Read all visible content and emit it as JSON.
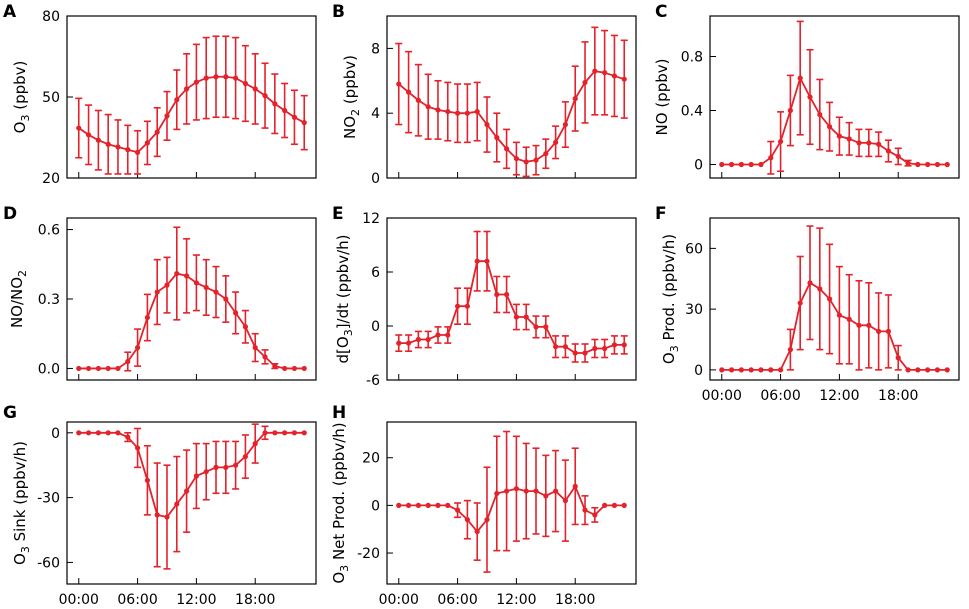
{
  "figure": {
    "series_color": "#e3222b"
  },
  "chart_data": [
    {
      "panel": "A",
      "type": "line",
      "ylabel": {
        "main": "O",
        "sub": "3",
        "rest": " (ppbv)"
      },
      "x": [
        0,
        1,
        2,
        3,
        4,
        5,
        6,
        7,
        8,
        9,
        10,
        11,
        12,
        13,
        14,
        15,
        16,
        17,
        18,
        19,
        20,
        21,
        22,
        23
      ],
      "y": [
        38.5,
        36,
        34,
        32.5,
        31.5,
        30.5,
        29.5,
        33,
        37,
        43,
        49,
        53,
        55.5,
        57,
        57.5,
        57.5,
        57,
        55,
        53,
        50.5,
        47.5,
        45,
        42.5,
        40.5
      ],
      "err": [
        11,
        11,
        11,
        11,
        10,
        9,
        8,
        8,
        9,
        9,
        11,
        13,
        14,
        15,
        15,
        15,
        15,
        14,
        13,
        12,
        11,
        10,
        10,
        10
      ],
      "ylim": [
        20,
        80
      ],
      "yticks": [
        20,
        50,
        80
      ],
      "ytick_labels": [
        "20",
        "50",
        "80"
      ],
      "xlim": [
        -1.2,
        24.2
      ],
      "xticks": [
        0,
        6,
        12,
        18
      ],
      "xtick_labels": []
    },
    {
      "panel": "B",
      "type": "line",
      "ylabel": {
        "main": "NO",
        "sub": "2",
        "rest": " (ppbv)"
      },
      "x": [
        0,
        1,
        2,
        3,
        4,
        5,
        6,
        7,
        8,
        9,
        10,
        11,
        12,
        13,
        14,
        15,
        16,
        17,
        18,
        19,
        20,
        21,
        22,
        23
      ],
      "y": [
        5.8,
        5.3,
        4.8,
        4.4,
        4.2,
        4.1,
        4.0,
        4.0,
        4.1,
        3.3,
        2.5,
        1.8,
        1.2,
        1.0,
        1.1,
        1.5,
        2.2,
        3.3,
        4.9,
        5.9,
        6.6,
        6.5,
        6.3,
        6.1
      ],
      "err": [
        2.5,
        2.5,
        2.2,
        2.0,
        1.8,
        1.8,
        1.8,
        1.8,
        1.8,
        1.7,
        1.5,
        1.2,
        1.0,
        0.9,
        0.9,
        0.9,
        1.0,
        1.4,
        2.0,
        2.5,
        2.7,
        2.6,
        2.5,
        2.4
      ],
      "ylim": [
        0,
        10
      ],
      "yticks": [
        0,
        4,
        8
      ],
      "ytick_labels": [
        "0",
        "4",
        "8"
      ],
      "xlim": [
        -1.2,
        24.2
      ],
      "xticks": [
        0,
        6,
        12,
        18
      ],
      "xtick_labels": []
    },
    {
      "panel": "C",
      "type": "line",
      "ylabel": {
        "main": "NO (ppbv)",
        "sub": "",
        "rest": ""
      },
      "x": [
        0,
        1,
        2,
        3,
        4,
        5,
        6,
        7,
        8,
        9,
        10,
        11,
        12,
        13,
        14,
        15,
        16,
        17,
        18,
        19,
        20,
        21,
        22,
        23
      ],
      "y": [
        0,
        0,
        0,
        0,
        0,
        0.05,
        0.17,
        0.4,
        0.64,
        0.5,
        0.37,
        0.28,
        0.21,
        0.19,
        0.16,
        0.16,
        0.15,
        0.1,
        0.06,
        0.01,
        0,
        0,
        0,
        0
      ],
      "err": [
        0,
        0,
        0,
        0,
        0,
        0.12,
        0.22,
        0.26,
        0.42,
        0.35,
        0.26,
        0.18,
        0.14,
        0.12,
        0.1,
        0.1,
        0.09,
        0.08,
        0.06,
        0.02,
        0,
        0,
        0,
        0
      ],
      "ylim": [
        -0.1,
        1.1
      ],
      "yticks": [
        0,
        0.4,
        0.8
      ],
      "ytick_labels": [
        "0",
        "0.4",
        "0.8"
      ],
      "xlim": [
        -1.2,
        24.2
      ],
      "xticks": [
        0,
        6,
        12,
        18
      ],
      "xtick_labels": []
    },
    {
      "panel": "D",
      "type": "line",
      "ylabel": {
        "main": "NO/NO",
        "sub": "2",
        "rest": ""
      },
      "x": [
        0,
        1,
        2,
        3,
        4,
        5,
        6,
        7,
        8,
        9,
        10,
        11,
        12,
        13,
        14,
        15,
        16,
        17,
        18,
        19,
        20,
        21,
        22,
        23
      ],
      "y": [
        0,
        0,
        0,
        0,
        0,
        0.03,
        0.09,
        0.22,
        0.33,
        0.36,
        0.41,
        0.4,
        0.37,
        0.35,
        0.33,
        0.3,
        0.24,
        0.18,
        0.09,
        0.05,
        0.01,
        0,
        0,
        0
      ],
      "err": [
        0,
        0,
        0,
        0,
        0,
        0.04,
        0.08,
        0.1,
        0.14,
        0.12,
        0.2,
        0.16,
        0.12,
        0.12,
        0.11,
        0.1,
        0.09,
        0.07,
        0.06,
        0.03,
        0.01,
        0,
        0,
        0
      ],
      "ylim": [
        -0.05,
        0.65
      ],
      "yticks": [
        0,
        0.3,
        0.6
      ],
      "ytick_labels": [
        "0.0",
        "0.3",
        "0.6"
      ],
      "xlim": [
        -1.2,
        24.2
      ],
      "xticks": [
        0,
        6,
        12,
        18
      ],
      "xtick_labels": []
    },
    {
      "panel": "E",
      "type": "line",
      "ylabel": {
        "main": "d[O",
        "sub": "3",
        "rest": "]/dt (ppbv/h)"
      },
      "x": [
        0,
        1,
        2,
        3,
        4,
        5,
        6,
        7,
        8,
        9,
        10,
        11,
        12,
        13,
        14,
        15,
        16,
        17,
        18,
        19,
        20,
        21,
        22,
        23
      ],
      "y": [
        -1.9,
        -1.9,
        -1.5,
        -1.5,
        -1.0,
        -1.0,
        2.2,
        2.2,
        7.2,
        7.2,
        3.5,
        3.5,
        1.0,
        1.0,
        -0.1,
        -0.1,
        -2.3,
        -2.3,
        -3.0,
        -3.0,
        -2.5,
        -2.5,
        -2.1,
        -2.1
      ],
      "err": [
        0.9,
        0.9,
        0.9,
        0.9,
        0.9,
        0.9,
        2.0,
        2.0,
        3.3,
        3.3,
        2.0,
        2.0,
        1.4,
        1.4,
        1.2,
        1.2,
        1.2,
        1.2,
        1.0,
        1.0,
        1.0,
        1.0,
        1.0,
        1.0
      ],
      "ylim": [
        -6,
        12
      ],
      "yticks": [
        -6,
        0,
        6,
        12
      ],
      "ytick_labels": [
        "-6",
        "0",
        "6",
        "12"
      ],
      "xlim": [
        -1.2,
        24.2
      ],
      "xticks": [
        0,
        6,
        12,
        18
      ],
      "xtick_labels": []
    },
    {
      "panel": "F",
      "type": "line",
      "ylabel": {
        "main": "O",
        "sub": "3",
        "rest": " Prod. (ppbv/h)"
      },
      "x": [
        0,
        1,
        2,
        3,
        4,
        5,
        6,
        7,
        8,
        9,
        10,
        11,
        12,
        13,
        14,
        15,
        16,
        17,
        18,
        19,
        20,
        21,
        22,
        23
      ],
      "y": [
        0,
        0,
        0,
        0,
        0,
        0,
        0,
        10,
        33,
        43,
        40,
        35,
        27,
        25,
        22,
        22,
        19,
        19,
        6,
        0,
        0,
        0,
        0,
        0
      ],
      "err": [
        0,
        0,
        0,
        0,
        0,
        0,
        0,
        10,
        23,
        28,
        30,
        27,
        24,
        22,
        22,
        21,
        19,
        18,
        6,
        0,
        0,
        0,
        0,
        0
      ],
      "ylim": [
        -5,
        75
      ],
      "yticks": [
        0,
        30,
        60
      ],
      "ytick_labels": [
        "0",
        "30",
        "60"
      ],
      "xlim": [
        -1.2,
        24.2
      ],
      "xticks": [
        0,
        6,
        12,
        18
      ],
      "xtick_labels": [
        "00:00",
        "06:00",
        "12:00",
        "18:00"
      ]
    },
    {
      "panel": "G",
      "type": "line",
      "ylabel": {
        "main": "O",
        "sub": "3",
        "rest": " Sink (ppbv/h)"
      },
      "x": [
        0,
        1,
        2,
        3,
        4,
        5,
        6,
        7,
        8,
        9,
        10,
        11,
        12,
        13,
        14,
        15,
        16,
        17,
        18,
        19,
        20,
        21,
        22,
        23
      ],
      "y": [
        0,
        0,
        0,
        0,
        0,
        -2,
        -7,
        -22,
        -38,
        -39,
        -33,
        -27,
        -20,
        -18,
        -16,
        -16,
        -15,
        -11,
        -5,
        0,
        0,
        0,
        0,
        0
      ],
      "err": [
        0,
        0,
        0,
        0,
        0,
        2,
        9,
        16,
        24,
        24,
        22,
        19,
        15,
        13,
        12,
        12,
        11,
        10,
        9,
        3,
        0,
        0,
        0,
        0
      ],
      "ylim": [
        -70,
        5
      ],
      "yticks": [
        -60,
        -30,
        0
      ],
      "ytick_labels": [
        "-60",
        "-30",
        "0"
      ],
      "xlim": [
        -1.2,
        24.2
      ],
      "xticks": [
        0,
        6,
        12,
        18
      ],
      "xtick_labels": [
        "00:00",
        "06:00",
        "12:00",
        "18:00"
      ]
    },
    {
      "panel": "H",
      "type": "line",
      "ylabel": {
        "main": "O",
        "sub": "3",
        "rest": " Net Prod. (ppbv/h)"
      },
      "x": [
        0,
        1,
        2,
        3,
        4,
        5,
        6,
        7,
        8,
        9,
        10,
        11,
        12,
        13,
        14,
        15,
        16,
        17,
        18,
        19,
        20,
        21,
        22,
        23
      ],
      "y": [
        0,
        0,
        0,
        0,
        0,
        0,
        -2,
        -6,
        -11,
        -6,
        5,
        6,
        7,
        6,
        6,
        4,
        6,
        2,
        8,
        -2,
        -4,
        0,
        0,
        0
      ],
      "err": [
        0,
        0,
        0,
        0,
        0,
        0,
        3,
        8,
        12,
        22,
        24,
        25,
        22,
        20,
        18,
        17,
        17,
        17,
        16,
        6,
        3,
        0,
        0,
        0
      ],
      "ylim": [
        -33,
        35
      ],
      "yticks": [
        -20,
        0,
        20
      ],
      "ytick_labels": [
        "-20",
        "0",
        "20"
      ],
      "xlim": [
        -1.2,
        24.2
      ],
      "xticks": [
        0,
        6,
        12,
        18
      ],
      "xtick_labels": [
        "00:00",
        "06:00",
        "12:00",
        "18:00"
      ]
    }
  ]
}
